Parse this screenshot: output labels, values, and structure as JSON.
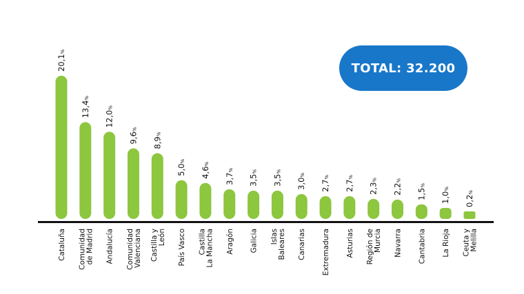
{
  "total_badge": {
    "label": "TOTAL: 32.200"
  },
  "colors": {
    "bar": "#8dc63f",
    "axis": "#111111",
    "badge": "#1877c9",
    "text": "#111111"
  },
  "chart_data": {
    "type": "bar",
    "title": "",
    "xlabel": "",
    "ylabel": "",
    "unit": "%",
    "grid": false,
    "ylim": [
      0,
      20.1
    ],
    "categories": [
      [
        "Cataluña"
      ],
      [
        "Comunidad",
        "de Madrid"
      ],
      [
        "Andalucía"
      ],
      [
        "Comunidad",
        "Valenciana"
      ],
      [
        "Castilla y",
        "León"
      ],
      [
        "País Vasco"
      ],
      [
        "Castilla",
        "La Mancha"
      ],
      [
        "Aragón"
      ],
      [
        "Galicia"
      ],
      [
        "Islas",
        "Baleares"
      ],
      [
        "Canarias"
      ],
      [
        "Extremadura"
      ],
      [
        "Asturias"
      ],
      [
        "Región de",
        "Murcia"
      ],
      [
        "Navarra"
      ],
      [
        "Cantabria"
      ],
      [
        "La Rioja"
      ],
      [
        "Ceuta y",
        "Melilla"
      ]
    ],
    "values": [
      20.1,
      13.4,
      12.0,
      9.6,
      8.9,
      5.0,
      4.6,
      3.7,
      3.5,
      3.5,
      3.0,
      2.7,
      2.7,
      2.3,
      2.2,
      1.5,
      1.0,
      0.2
    ],
    "value_labels": [
      "20,1",
      "13,4",
      "12,0",
      "9,6",
      "8,9",
      "5,0",
      "4,6",
      "3,7",
      "3,5",
      "3,5",
      "3,0",
      "2,7",
      "2,7",
      "2,3",
      "2,2",
      "1,5",
      "1,0",
      "0,2"
    ]
  }
}
